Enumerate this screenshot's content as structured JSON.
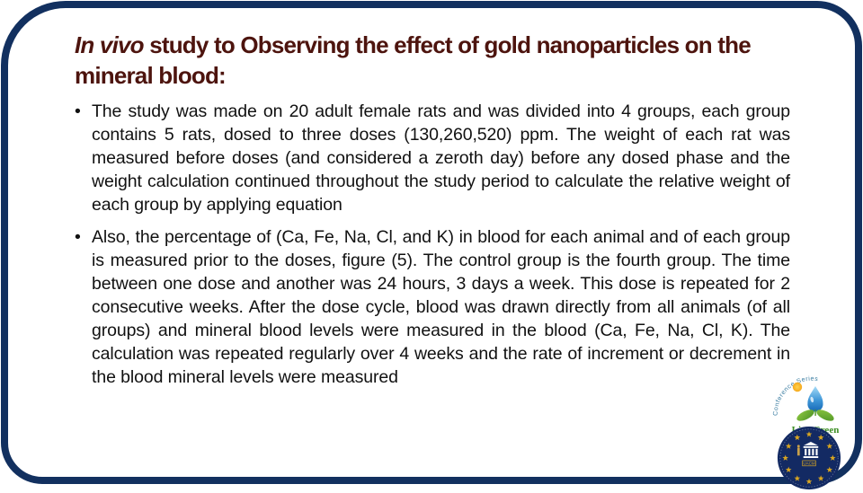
{
  "slide": {
    "title": {
      "italic_part": "In vivo",
      "rest_part": " study to Observing the effect of gold nanoparticles on the mineral blood:"
    },
    "bullets": [
      {
        "marker": "•",
        "text": "The study was made on 20 adult female rats and was divided into 4 groups, each group contains 5 rats, dosed to three doses (130,260,520) ppm. The weight of each rat was measured before doses (and considered a zeroth day) before any dosed phase and the weight calculation continued throughout the study period to calculate the relative weight of each group by applying equation"
      },
      {
        "marker": "•",
        "text": "Also, the percentage of (Ca, Fe, Na, Cl, and K) in blood for each animal and of each group is measured prior to the doses, figure (5). The control group is the fourth group. The time between one dose and another was 24 hours, 3 days a week. This dose is repeated for 2 consecutive weeks. After the dose cycle, blood was drawn directly from all animals (of all groups) and mineral blood levels were measured in the blood (Ca, Fe, Na, Cl, K). The calculation was repeated regularly over 4 weeks and the rate of increment or decrement in the blood mineral levels were measured"
      }
    ],
    "colors": {
      "border_navy": "#12305f",
      "title_maroon": "#4d140e",
      "body_text": "#111111",
      "emblem_navy": "#132a63",
      "star_gold": "#d9a621",
      "droplet_dark": "#1668b5",
      "droplet_light": "#a6dcf7",
      "leaf_green": "#63a832",
      "live_green_text": "#3c8e22",
      "arc_text_blue": "#33789e",
      "sun_orange": "#f5a81c"
    },
    "logos": {
      "live_green": {
        "arc_text": "Conference Series",
        "label": "Live Green"
      },
      "emblem": {
        "label": "UACM",
        "star_count": 12
      }
    }
  }
}
